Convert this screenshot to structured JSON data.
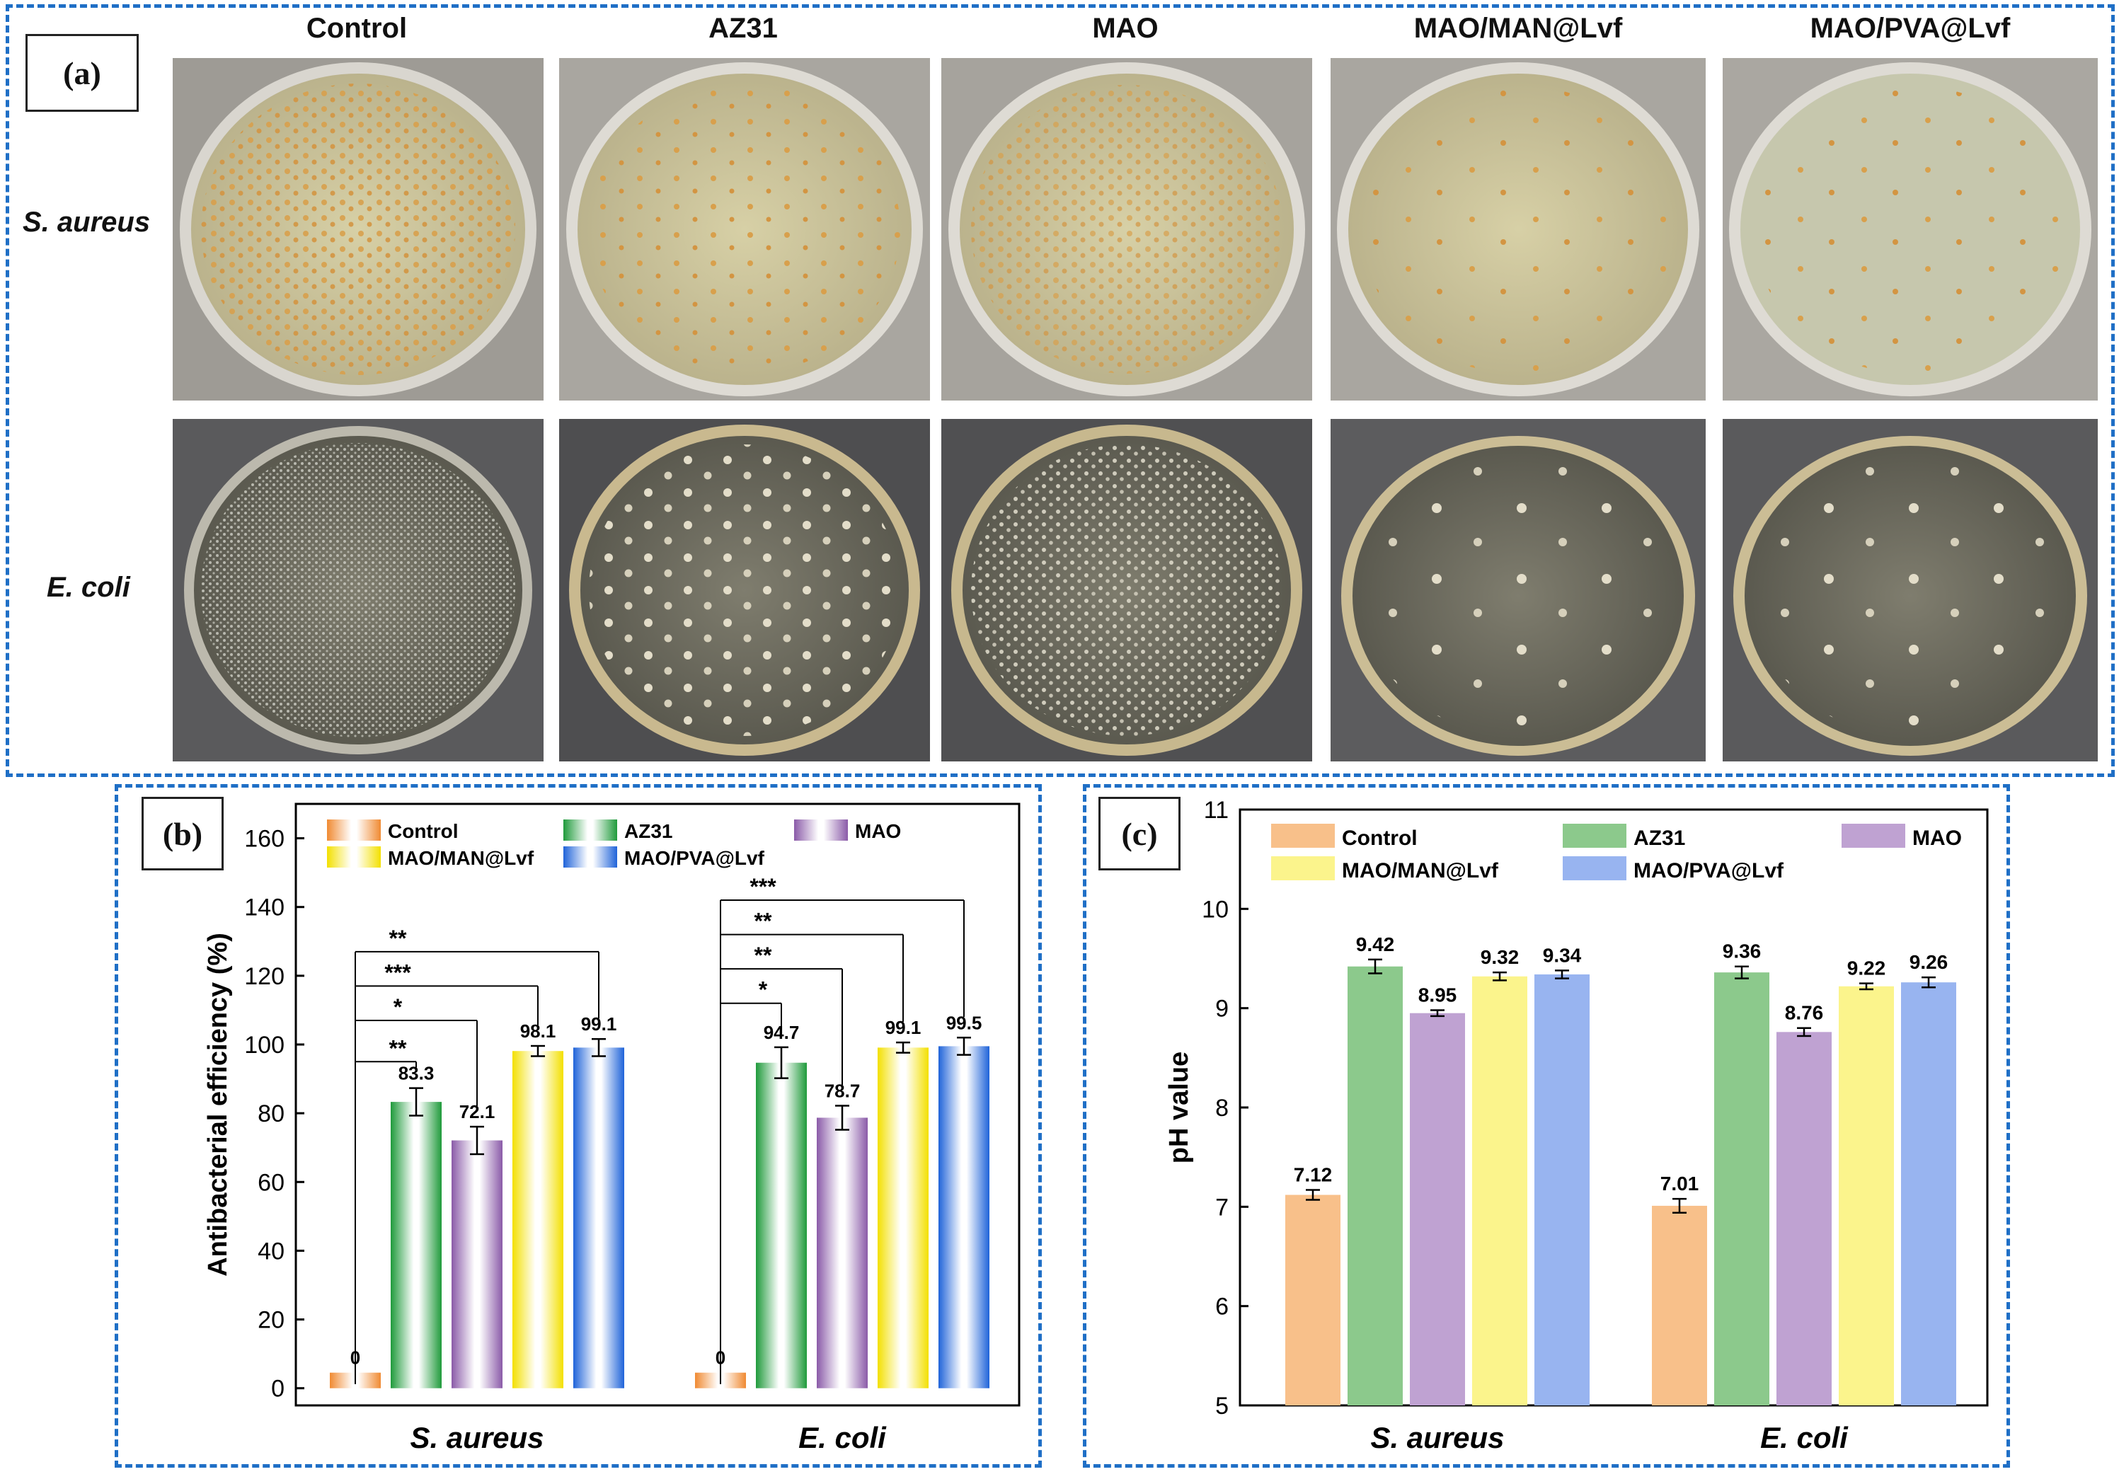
{
  "panel_a": {
    "label": "(a)",
    "columns": [
      "Control",
      "AZ31",
      "MAO",
      "MAO/MAN@Lvf",
      "MAO/PVA@Lvf"
    ],
    "rows": [
      "S. aureus",
      "E. coli"
    ]
  },
  "panel_b": {
    "label": "(b)"
  },
  "panel_c": {
    "label": "(c)"
  },
  "colors": {
    "frame": "#1f6fc6",
    "b": [
      "#f08a32",
      "#1f9a3b",
      "#8a5aa8",
      "#f3e000",
      "#1f63d9"
    ],
    "c": [
      "#f8c08a",
      "#8cc98c",
      "#bfa2d2",
      "#fbf48c",
      "#98b4f0"
    ]
  },
  "chart_data": [
    {
      "id": "b",
      "type": "bar",
      "categories": [
        "S. aureus",
        "E. coli"
      ],
      "series": [
        {
          "name": "Control",
          "values": [
            0,
            0
          ],
          "errors": [
            0,
            0
          ],
          "labels": [
            "0",
            "0"
          ]
        },
        {
          "name": "AZ31",
          "values": [
            83.3,
            94.7
          ],
          "errors": [
            4,
            4.5
          ],
          "labels": [
            "83.3",
            "94.7"
          ]
        },
        {
          "name": "MAO",
          "values": [
            72.1,
            78.7
          ],
          "errors": [
            4,
            3.5
          ],
          "labels": [
            "72.1",
            "78.7"
          ]
        },
        {
          "name": "MAO/MAN@Lvf",
          "values": [
            98.1,
            99.1
          ],
          "errors": [
            1.5,
            1.5
          ],
          "labels": [
            "98.1",
            "99.1"
          ]
        },
        {
          "name": "MAO/PVA@Lvf",
          "values": [
            99.1,
            99.5
          ],
          "errors": [
            2.5,
            2.5
          ],
          "labels": [
            "99.1",
            "99.5"
          ]
        }
      ],
      "ylabel": "Antibacterial efficiency (%)",
      "xlabel": "",
      "ylim": [
        -5,
        170
      ],
      "yticks": [
        0,
        20,
        40,
        60,
        80,
        100,
        120,
        140,
        160
      ],
      "legend_position": "top",
      "significance": [
        {
          "group": 0,
          "to": 1,
          "level": 95,
          "text": "**"
        },
        {
          "group": 0,
          "to": 2,
          "level": 107,
          "text": "*"
        },
        {
          "group": 0,
          "to": 3,
          "level": 117,
          "text": "***"
        },
        {
          "group": 0,
          "to": 4,
          "level": 127,
          "text": "**"
        },
        {
          "group": 1,
          "to": 1,
          "level": 112,
          "text": "*"
        },
        {
          "group": 1,
          "to": 2,
          "level": 122,
          "text": "**"
        },
        {
          "group": 1,
          "to": 3,
          "level": 132,
          "text": "**"
        },
        {
          "group": 1,
          "to": 4,
          "level": 142,
          "text": "***"
        }
      ]
    },
    {
      "id": "c",
      "type": "bar",
      "categories": [
        "S. aureus",
        "E. coli"
      ],
      "series": [
        {
          "name": "Control",
          "values": [
            7.12,
            7.01
          ],
          "errors": [
            0.05,
            0.07
          ],
          "labels": [
            "7.12",
            "7.01"
          ]
        },
        {
          "name": "AZ31",
          "values": [
            9.42,
            9.36
          ],
          "errors": [
            0.07,
            0.06
          ],
          "labels": [
            "9.42",
            "9.36"
          ]
        },
        {
          "name": "MAO",
          "values": [
            8.95,
            8.76
          ],
          "errors": [
            0.03,
            0.04
          ],
          "labels": [
            "8.95",
            "8.76"
          ]
        },
        {
          "name": "MAO/MAN@Lvf",
          "values": [
            9.32,
            9.22
          ],
          "errors": [
            0.04,
            0.03
          ],
          "labels": [
            "9.32",
            "9.22"
          ]
        },
        {
          "name": "MAO/PVA@Lvf",
          "values": [
            9.34,
            9.26
          ],
          "errors": [
            0.04,
            0.05
          ],
          "labels": [
            "9.34",
            "9.26"
          ]
        }
      ],
      "ylabel": "pH value",
      "xlabel": "",
      "ylim": [
        5,
        11
      ],
      "yticks": [
        5,
        6,
        7,
        8,
        9,
        10,
        11
      ],
      "legend_position": "top"
    }
  ]
}
